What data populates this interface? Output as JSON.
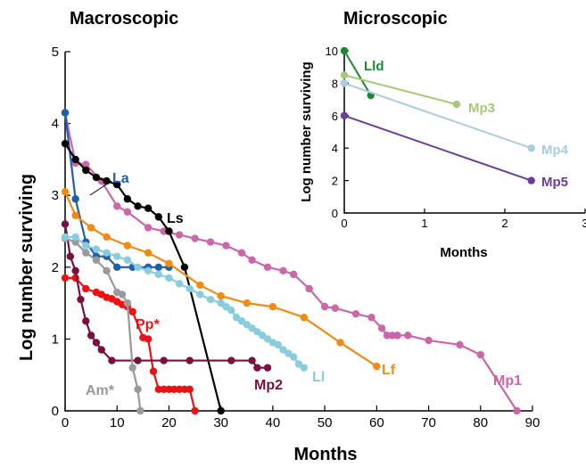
{
  "chart_data": [
    {
      "type": "line",
      "title": "Macroscopic",
      "xlabel": "Months",
      "ylabel": "Log number surviving",
      "xlim": [
        0,
        90
      ],
      "ylim": [
        0,
        5
      ],
      "xticks": [
        0,
        10,
        20,
        30,
        40,
        50,
        60,
        70,
        80,
        90
      ],
      "yticks": [
        0,
        1,
        2,
        3,
        4,
        5
      ],
      "series": [
        {
          "name": "Mp1",
          "color": "#cc66aa",
          "points": [
            [
              0,
              4.15
            ],
            [
              2,
              3.45
            ],
            [
              4,
              3.43
            ],
            [
              7,
              3.2
            ],
            [
              10,
              2.85
            ],
            [
              12,
              2.77
            ],
            [
              16,
              2.55
            ],
            [
              19,
              2.5
            ],
            [
              22,
              2.45
            ],
            [
              25,
              2.4
            ],
            [
              28,
              2.35
            ],
            [
              31,
              2.3
            ],
            [
              34,
              2.2
            ],
            [
              36,
              2.1
            ],
            [
              39,
              2.0
            ],
            [
              42,
              1.95
            ],
            [
              44,
              1.9
            ],
            [
              47,
              1.7
            ],
            [
              50,
              1.45
            ],
            [
              52,
              1.43
            ],
            [
              56,
              1.35
            ],
            [
              59,
              1.3
            ],
            [
              61,
              1.15
            ],
            [
              62,
              1.05
            ],
            [
              63,
              1.05
            ],
            [
              64,
              1.05
            ],
            [
              66,
              1.05
            ],
            [
              70,
              0.98
            ],
            [
              76,
              0.92
            ],
            [
              80,
              0.78
            ],
            [
              87,
              0.0
            ]
          ]
        },
        {
          "name": "La",
          "color": "#1f5fa8",
          "points": [
            [
              0,
              4.15
            ],
            [
              2,
              2.95
            ],
            [
              4,
              2.35
            ],
            [
              6,
              2.15
            ],
            [
              8,
              2.15
            ],
            [
              10,
              2.0
            ],
            [
              13,
              2.0
            ],
            [
              16,
              2.0
            ],
            [
              18,
              2.0
            ],
            [
              20,
              2.0
            ]
          ]
        },
        {
          "name": "Ls",
          "color": "#000000",
          "points": [
            [
              0,
              3.72
            ],
            [
              2,
              3.5
            ],
            [
              4,
              3.35
            ],
            [
              6,
              3.25
            ],
            [
              8,
              3.2
            ],
            [
              10,
              3.15
            ],
            [
              12,
              2.95
            ],
            [
              14,
              2.85
            ],
            [
              16,
              2.82
            ],
            [
              18,
              2.7
            ],
            [
              20,
              2.5
            ],
            [
              23,
              2.0
            ],
            [
              30,
              0.0
            ]
          ]
        },
        {
          "name": "Pp*",
          "color": "#ee1111",
          "points": [
            [
              0,
              1.85
            ],
            [
              2,
              1.85
            ],
            [
              4,
              1.7
            ],
            [
              6,
              1.65
            ],
            [
              7,
              1.62
            ],
            [
              8,
              1.58
            ],
            [
              9,
              1.56
            ],
            [
              10,
              1.52
            ],
            [
              11,
              1.48
            ],
            [
              12,
              1.45
            ],
            [
              13,
              1.38
            ],
            [
              15,
              1.02
            ],
            [
              16,
              1.0
            ],
            [
              17,
              0.55
            ],
            [
              18,
              0.3
            ],
            [
              19,
              0.3
            ],
            [
              20,
              0.3
            ],
            [
              21,
              0.3
            ],
            [
              22,
              0.3
            ],
            [
              23,
              0.3
            ],
            [
              24,
              0.3
            ],
            [
              25,
              0.0
            ]
          ]
        },
        {
          "name": "Mp2",
          "color": "#7a1040",
          "points": [
            [
              0,
              2.6
            ],
            [
              1,
              2.15
            ],
            [
              2,
              1.95
            ],
            [
              3,
              1.55
            ],
            [
              4,
              1.25
            ],
            [
              5,
              1.05
            ],
            [
              6,
              0.95
            ],
            [
              7,
              0.85
            ],
            [
              9,
              0.7
            ],
            [
              14,
              0.7
            ],
            [
              19,
              0.7
            ],
            [
              24,
              0.7
            ],
            [
              32,
              0.7
            ],
            [
              36,
              0.7
            ],
            [
              37,
              0.6
            ],
            [
              39,
              0.6
            ]
          ]
        },
        {
          "name": "Am*",
          "color": "#999999",
          "points": [
            [
              0,
              2.4
            ],
            [
              2,
              2.35
            ],
            [
              4,
              2.2
            ],
            [
              6,
              2.1
            ],
            [
              8,
              1.95
            ],
            [
              10,
              1.65
            ],
            [
              11,
              1.62
            ],
            [
              12,
              1.5
            ],
            [
              13,
              0.6
            ],
            [
              14,
              0.3
            ],
            [
              14.5,
              0.0
            ]
          ]
        },
        {
          "name": "Ll",
          "color": "#88ccdd",
          "points": [
            [
              0,
              2.42
            ],
            [
              2,
              2.42
            ],
            [
              4,
              2.3
            ],
            [
              6,
              2.25
            ],
            [
              8,
              2.2
            ],
            [
              10,
              2.15
            ],
            [
              12,
              2.1
            ],
            [
              14,
              2.0
            ],
            [
              16,
              1.95
            ],
            [
              18,
              1.9
            ],
            [
              20,
              1.85
            ],
            [
              22,
              1.77
            ],
            [
              24,
              1.7
            ],
            [
              26,
              1.62
            ],
            [
              28,
              1.55
            ],
            [
              30,
              1.5
            ],
            [
              31,
              1.45
            ],
            [
              32,
              1.4
            ],
            [
              33,
              1.3
            ],
            [
              34,
              1.25
            ],
            [
              35,
              1.2
            ],
            [
              36,
              1.15
            ],
            [
              37,
              1.1
            ],
            [
              38,
              1.05
            ],
            [
              39,
              1.0
            ],
            [
              40,
              0.95
            ],
            [
              41,
              0.92
            ],
            [
              42,
              0.85
            ],
            [
              43,
              0.8
            ],
            [
              44,
              0.75
            ],
            [
              45,
              0.65
            ],
            [
              46,
              0.6
            ]
          ]
        },
        {
          "name": "Lf",
          "color": "#f08a10",
          "points": [
            [
              0,
              3.05
            ],
            [
              2,
              2.72
            ],
            [
              5,
              2.55
            ],
            [
              8,
              2.42
            ],
            [
              12,
              2.3
            ],
            [
              16,
              2.2
            ],
            [
              20,
              2.05
            ],
            [
              26,
              1.75
            ],
            [
              30,
              1.6
            ],
            [
              35,
              1.5
            ],
            [
              40,
              1.45
            ],
            [
              46,
              1.3
            ],
            [
              53,
              0.95
            ],
            [
              60,
              0.62
            ]
          ]
        }
      ],
      "labels": [
        {
          "text": "La",
          "color": "#1f5fa8"
        },
        {
          "text": "Ls",
          "color": "#000000"
        },
        {
          "text": "Pp*",
          "color": "#ee1111"
        },
        {
          "text": "Am*",
          "color": "#999999"
        },
        {
          "text": "Mp2",
          "color": "#7a1040"
        },
        {
          "text": "Ll",
          "color": "#88ccdd"
        },
        {
          "text": "Lf",
          "color": "#f08a10"
        },
        {
          "text": "Mp1",
          "color": "#cc66aa"
        }
      ]
    },
    {
      "type": "line",
      "title": "Microscopic",
      "xlabel": "Months",
      "ylabel": "Log number surviving",
      "xlim": [
        0,
        3
      ],
      "ylim": [
        0,
        10
      ],
      "xticks": [
        0,
        1,
        2,
        3
      ],
      "yticks": [
        0,
        2,
        4,
        6,
        8,
        10
      ],
      "series": [
        {
          "name": "Lld",
          "color": "#1a8a30",
          "points": [
            [
              0,
              10.0
            ],
            [
              0.33,
              7.25
            ]
          ]
        },
        {
          "name": "Mp3",
          "color": "#a8c878",
          "points": [
            [
              0,
              8.5
            ],
            [
              1.4,
              6.7
            ]
          ]
        },
        {
          "name": "Mp4",
          "color": "#a8cce0",
          "points": [
            [
              0,
              8.0
            ],
            [
              2.33,
              4.0
            ]
          ]
        },
        {
          "name": "Mp5",
          "color": "#6a3d9a",
          "points": [
            [
              0,
              6.0
            ],
            [
              2.33,
              2.0
            ]
          ]
        }
      ],
      "labels": [
        {
          "text": "Lld",
          "color": "#1a8a30"
        },
        {
          "text": "Mp3",
          "color": "#a8c878"
        },
        {
          "text": "Mp4",
          "color": "#a8cce0"
        },
        {
          "text": "Mp5",
          "color": "#6a3d9a"
        }
      ]
    }
  ]
}
